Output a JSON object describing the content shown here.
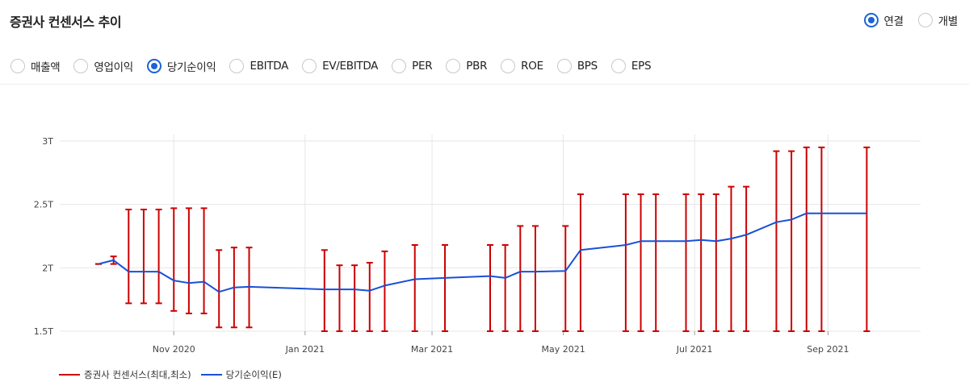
{
  "header": {
    "title": "증권사 컨센서스 추이"
  },
  "mode": [
    {
      "label": "연결",
      "selected": true
    },
    {
      "label": "개별",
      "selected": false
    }
  ],
  "metrics": [
    {
      "label": "매출액",
      "selected": false
    },
    {
      "label": "영업이익",
      "selected": false
    },
    {
      "label": "당기순이익",
      "selected": true
    },
    {
      "label": "EBITDA",
      "selected": false
    },
    {
      "label": "EV/EBITDA",
      "selected": false
    },
    {
      "label": "PER",
      "selected": false
    },
    {
      "label": "PBR",
      "selected": false
    },
    {
      "label": "ROE",
      "selected": false
    },
    {
      "label": "BPS",
      "selected": false
    },
    {
      "label": "EPS",
      "selected": false
    }
  ],
  "colors": {
    "range": "#cc0000",
    "line": "#1a4fd6",
    "accent": "#1a63d8",
    "grid": "#e6e6e6"
  },
  "chart_data": {
    "type": "line",
    "x_tick_labels": [
      "Nov 2020",
      "Jan 2021",
      "Mar 2021",
      "May 2021",
      "Jul 2021",
      "Sep 2021"
    ],
    "x_tick_dates": [
      "2020-11-01",
      "2021-01-01",
      "2021-03-01",
      "2021-05-01",
      "2021-07-01",
      "2021-09-01"
    ],
    "y_ticks": [
      1.5,
      2,
      2.5,
      3
    ],
    "y_tick_labels": [
      "1.5T",
      "2T",
      "2.5T",
      "3T"
    ],
    "ylim": [
      1.5,
      3
    ],
    "xlim": [
      "2020-09-09",
      "2021-10-14"
    ],
    "grid": true,
    "legend_position": "bottom-left",
    "series": [
      {
        "name": "증권사 컨센서스(최대,최소)",
        "kind": "range",
        "points": [
          {
            "x": "2020-09-27",
            "low": 2.03,
            "high": 2.03
          },
          {
            "x": "2020-10-04",
            "low": 2.03,
            "high": 2.09
          },
          {
            "x": "2020-10-11",
            "low": 1.72,
            "high": 2.46
          },
          {
            "x": "2020-10-18",
            "low": 1.72,
            "high": 2.46
          },
          {
            "x": "2020-10-25",
            "low": 1.72,
            "high": 2.46
          },
          {
            "x": "2020-11-01",
            "low": 1.66,
            "high": 2.47
          },
          {
            "x": "2020-11-08",
            "low": 1.64,
            "high": 2.47
          },
          {
            "x": "2020-11-15",
            "low": 1.64,
            "high": 2.47
          },
          {
            "x": "2020-11-22",
            "low": 1.53,
            "high": 2.14
          },
          {
            "x": "2020-11-29",
            "low": 1.53,
            "high": 2.16
          },
          {
            "x": "2020-12-06",
            "low": 1.53,
            "high": 2.16
          },
          {
            "x": "2021-01-10",
            "low": 1.5,
            "high": 2.14
          },
          {
            "x": "2021-01-17",
            "low": 1.5,
            "high": 2.02
          },
          {
            "x": "2021-01-24",
            "low": 1.5,
            "high": 2.02
          },
          {
            "x": "2021-01-31",
            "low": 1.5,
            "high": 2.04
          },
          {
            "x": "2021-02-07",
            "low": 1.5,
            "high": 2.13
          },
          {
            "x": "2021-02-21",
            "low": 1.5,
            "high": 2.18
          },
          {
            "x": "2021-03-07",
            "low": 1.5,
            "high": 2.18
          },
          {
            "x": "2021-03-28",
            "low": 1.5,
            "high": 2.18
          },
          {
            "x": "2021-04-04",
            "low": 1.5,
            "high": 2.18
          },
          {
            "x": "2021-04-11",
            "low": 1.5,
            "high": 2.33
          },
          {
            "x": "2021-04-18",
            "low": 1.5,
            "high": 2.33
          },
          {
            "x": "2021-05-02",
            "low": 1.5,
            "high": 2.33
          },
          {
            "x": "2021-05-09",
            "low": 1.5,
            "high": 2.58
          },
          {
            "x": "2021-05-30",
            "low": 1.5,
            "high": 2.58
          },
          {
            "x": "2021-06-06",
            "low": 1.5,
            "high": 2.58
          },
          {
            "x": "2021-06-13",
            "low": 1.5,
            "high": 2.58
          },
          {
            "x": "2021-06-27",
            "low": 1.5,
            "high": 2.58
          },
          {
            "x": "2021-07-04",
            "low": 1.5,
            "high": 2.58
          },
          {
            "x": "2021-07-11",
            "low": 1.5,
            "high": 2.58
          },
          {
            "x": "2021-07-18",
            "low": 1.5,
            "high": 2.64
          },
          {
            "x": "2021-07-25",
            "low": 1.5,
            "high": 2.64
          },
          {
            "x": "2021-08-08",
            "low": 1.5,
            "high": 2.92
          },
          {
            "x": "2021-08-15",
            "low": 1.5,
            "high": 2.92
          },
          {
            "x": "2021-08-22",
            "low": 1.5,
            "high": 2.95
          },
          {
            "x": "2021-08-29",
            "low": 1.5,
            "high": 2.95
          },
          {
            "x": "2021-09-19",
            "low": 1.5,
            "high": 2.95
          }
        ]
      },
      {
        "name": "당기순이익(E)",
        "kind": "line",
        "points": [
          {
            "x": "2020-09-27",
            "y": 2.03
          },
          {
            "x": "2020-10-04",
            "y": 2.06
          },
          {
            "x": "2020-10-11",
            "y": 1.97
          },
          {
            "x": "2020-10-18",
            "y": 1.97
          },
          {
            "x": "2020-10-25",
            "y": 1.97
          },
          {
            "x": "2020-11-01",
            "y": 1.9
          },
          {
            "x": "2020-11-08",
            "y": 1.88
          },
          {
            "x": "2020-11-15",
            "y": 1.89
          },
          {
            "x": "2020-11-22",
            "y": 1.81
          },
          {
            "x": "2020-11-29",
            "y": 1.845
          },
          {
            "x": "2020-12-06",
            "y": 1.85
          },
          {
            "x": "2021-01-10",
            "y": 1.83
          },
          {
            "x": "2021-01-17",
            "y": 1.83
          },
          {
            "x": "2021-01-24",
            "y": 1.83
          },
          {
            "x": "2021-01-31",
            "y": 1.82
          },
          {
            "x": "2021-02-07",
            "y": 1.86
          },
          {
            "x": "2021-02-21",
            "y": 1.91
          },
          {
            "x": "2021-03-07",
            "y": 1.92
          },
          {
            "x": "2021-03-28",
            "y": 1.935
          },
          {
            "x": "2021-04-04",
            "y": 1.92
          },
          {
            "x": "2021-04-11",
            "y": 1.97
          },
          {
            "x": "2021-04-18",
            "y": 1.97
          },
          {
            "x": "2021-05-02",
            "y": 1.975
          },
          {
            "x": "2021-05-09",
            "y": 2.14
          },
          {
            "x": "2021-05-30",
            "y": 2.18
          },
          {
            "x": "2021-06-06",
            "y": 2.21
          },
          {
            "x": "2021-06-13",
            "y": 2.21
          },
          {
            "x": "2021-06-27",
            "y": 2.21
          },
          {
            "x": "2021-07-04",
            "y": 2.22
          },
          {
            "x": "2021-07-11",
            "y": 2.21
          },
          {
            "x": "2021-07-18",
            "y": 2.23
          },
          {
            "x": "2021-07-25",
            "y": 2.26
          },
          {
            "x": "2021-08-08",
            "y": 2.36
          },
          {
            "x": "2021-08-15",
            "y": 2.38
          },
          {
            "x": "2021-08-22",
            "y": 2.43
          },
          {
            "x": "2021-08-29",
            "y": 2.43
          },
          {
            "x": "2021-09-19",
            "y": 2.43
          }
        ]
      }
    ]
  }
}
